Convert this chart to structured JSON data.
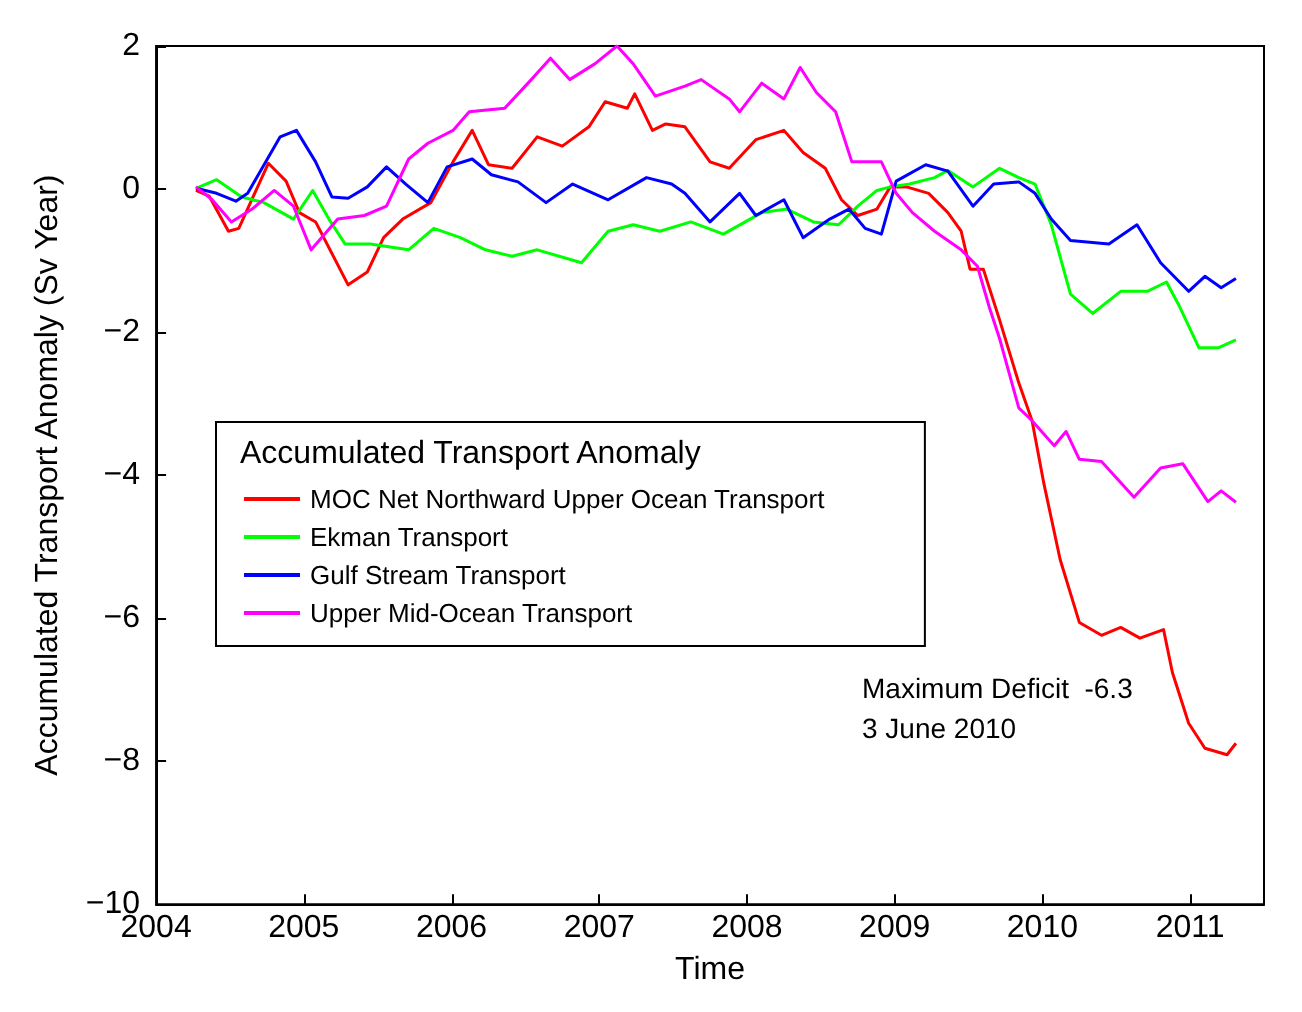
{
  "chart_data": {
    "type": "line",
    "xlabel": "Time",
    "ylabel": "Accumulated Transport Anomaly (Sv Year)",
    "legend_title": "Accumulated Transport Anomaly",
    "xlim": [
      2004,
      2011.5
    ],
    "xticks": [
      2004,
      2005,
      2006,
      2007,
      2008,
      2009,
      2010,
      2011
    ],
    "ylim": [
      -10,
      2
    ],
    "yticks": [
      -10,
      -8,
      -6,
      -4,
      -2,
      0,
      2
    ],
    "grid": false,
    "legend": "left",
    "marker": "none",
    "line_style": "solid",
    "annotations": [
      "Maximum Deficit  -6.3\n3 June 2010"
    ],
    "series": [
      {
        "name": "MOC Net Northward Upper Ocean Transport",
        "color": "#ff0000",
        "x": [
          2004.27,
          2004.36,
          2004.49,
          2004.56,
          2004.76,
          2004.88,
          2004.97,
          2005.08,
          2005.3,
          2005.43,
          2005.54,
          2005.67,
          2005.86,
          2006.01,
          2006.14,
          2006.25,
          2006.41,
          2006.58,
          2006.75,
          2006.93,
          2007.04,
          2007.19,
          2007.24,
          2007.36,
          2007.45,
          2007.58,
          2007.75,
          2007.88,
          2008.06,
          2008.25,
          2008.38,
          2008.53,
          2008.64,
          2008.75,
          2008.88,
          2008.97,
          2009.08,
          2009.23,
          2009.36,
          2009.45,
          2009.51,
          2009.6,
          2009.71,
          2009.84,
          2009.93,
          2010.01,
          2010.12,
          2010.25,
          2010.4,
          2010.53,
          2010.66,
          2010.82,
          2010.88,
          2010.99,
          2011.1,
          2011.25,
          2011.31
        ],
        "values": [
          -0.02,
          -0.1,
          -0.59,
          -0.55,
          0.36,
          0.11,
          -0.33,
          -0.46,
          -1.34,
          -1.16,
          -0.68,
          -0.42,
          -0.19,
          0.38,
          0.82,
          0.34,
          0.29,
          0.73,
          0.6,
          0.87,
          1.22,
          1.13,
          1.33,
          0.82,
          0.91,
          0.87,
          0.38,
          0.29,
          0.69,
          0.82,
          0.51,
          0.29,
          -0.15,
          -0.37,
          -0.28,
          0.03,
          0.03,
          -0.06,
          -0.33,
          -0.59,
          -1.12,
          -1.12,
          -1.83,
          -2.71,
          -3.24,
          -4.12,
          -5.18,
          -6.06,
          -6.24,
          -6.13,
          -6.28,
          -6.16,
          -6.76,
          -7.47,
          -7.82,
          -7.91,
          -7.75
        ]
      },
      {
        "name": "Ekman Transport",
        "color": "#00ff00",
        "x": [
          2004.27,
          2004.41,
          2004.58,
          2004.73,
          2004.93,
          2005.06,
          2005.17,
          2005.28,
          2005.45,
          2005.71,
          2005.88,
          2006.06,
          2006.23,
          2006.41,
          2006.58,
          2006.88,
          2007.06,
          2007.23,
          2007.41,
          2007.62,
          2007.84,
          2008.1,
          2008.27,
          2008.45,
          2008.62,
          2008.75,
          2008.88,
          2008.97,
          2009.1,
          2009.27,
          2009.36,
          2009.53,
          2009.71,
          2009.84,
          2009.95,
          2010.06,
          2010.19,
          2010.34,
          2010.53,
          2010.71,
          2010.84,
          2010.93,
          2011.06,
          2011.19,
          2011.31
        ],
        "values": [
          0.01,
          0.13,
          -0.11,
          -0.19,
          -0.42,
          -0.02,
          -0.42,
          -0.77,
          -0.77,
          -0.85,
          -0.55,
          -0.68,
          -0.85,
          -0.94,
          -0.85,
          -1.03,
          -0.59,
          -0.5,
          -0.59,
          -0.46,
          -0.63,
          -0.33,
          -0.28,
          -0.46,
          -0.5,
          -0.24,
          -0.02,
          0.03,
          0.07,
          0.16,
          0.26,
          0.03,
          0.29,
          0.16,
          0.07,
          -0.5,
          -1.47,
          -1.74,
          -1.43,
          -1.43,
          -1.3,
          -1.65,
          -2.22,
          -2.22,
          -2.11
        ]
      },
      {
        "name": "Gulf Stream Transport",
        "color": "#0000ff",
        "x": [
          2004.27,
          2004.41,
          2004.54,
          2004.62,
          2004.84,
          2004.95,
          2005.08,
          2005.19,
          2005.3,
          2005.43,
          2005.56,
          2005.69,
          2005.84,
          2005.97,
          2006.14,
          2006.27,
          2006.45,
          2006.64,
          2006.82,
          2007.06,
          2007.32,
          2007.49,
          2007.58,
          2007.75,
          2007.95,
          2008.06,
          2008.25,
          2008.38,
          2008.56,
          2008.69,
          2008.8,
          2008.91,
          2009.01,
          2009.21,
          2009.36,
          2009.53,
          2009.67,
          2009.84,
          2009.95,
          2010.06,
          2010.19,
          2010.45,
          2010.64,
          2010.8,
          2010.99,
          2011.1,
          2011.21,
          2011.31
        ],
        "values": [
          0.01,
          -0.06,
          -0.17,
          -0.06,
          0.73,
          0.82,
          0.38,
          -0.11,
          -0.13,
          0.03,
          0.31,
          0.07,
          -0.19,
          0.31,
          0.42,
          0.2,
          0.1,
          -0.19,
          0.07,
          -0.15,
          0.16,
          0.07,
          -0.06,
          -0.46,
          -0.06,
          -0.37,
          -0.15,
          -0.68,
          -0.42,
          -0.28,
          -0.55,
          -0.63,
          0.11,
          0.34,
          0.25,
          -0.24,
          0.07,
          0.1,
          -0.06,
          -0.42,
          -0.72,
          -0.77,
          -0.5,
          -1.03,
          -1.43,
          -1.22,
          -1.38,
          -1.25
        ]
      },
      {
        "name": "Upper Mid-Ocean Transport",
        "color": "#ff00ff",
        "x": [
          2004.27,
          2004.38,
          2004.51,
          2004.65,
          2004.8,
          2004.93,
          2005.05,
          2005.12,
          2005.23,
          2005.41,
          2005.56,
          2005.71,
          2005.84,
          2006.01,
          2006.12,
          2006.36,
          2006.54,
          2006.67,
          2006.8,
          2006.97,
          2007.12,
          2007.23,
          2007.38,
          2007.58,
          2007.69,
          2007.88,
          2007.95,
          2008.1,
          2008.25,
          2008.36,
          2008.47,
          2008.6,
          2008.71,
          2008.91,
          2009.01,
          2009.12,
          2009.27,
          2009.45,
          2009.56,
          2009.64,
          2009.71,
          2009.84,
          2009.93,
          2010.08,
          2010.16,
          2010.25,
          2010.4,
          2010.62,
          2010.8,
          2010.95,
          2011.12,
          2011.21,
          2011.31
        ],
        "values": [
          0.03,
          -0.15,
          -0.46,
          -0.28,
          -0.02,
          -0.24,
          -0.85,
          -0.68,
          -0.42,
          -0.37,
          -0.24,
          0.42,
          0.64,
          0.82,
          1.08,
          1.13,
          1.53,
          1.83,
          1.53,
          1.75,
          2.0,
          1.75,
          1.3,
          1.44,
          1.53,
          1.26,
          1.08,
          1.48,
          1.26,
          1.7,
          1.35,
          1.08,
          0.38,
          0.38,
          -0.06,
          -0.33,
          -0.59,
          -0.85,
          -1.08,
          -1.65,
          -2.09,
          -3.06,
          -3.24,
          -3.59,
          -3.39,
          -3.78,
          -3.81,
          -4.31,
          -3.9,
          -3.84,
          -4.37,
          -4.22,
          -4.38
        ]
      }
    ]
  }
}
